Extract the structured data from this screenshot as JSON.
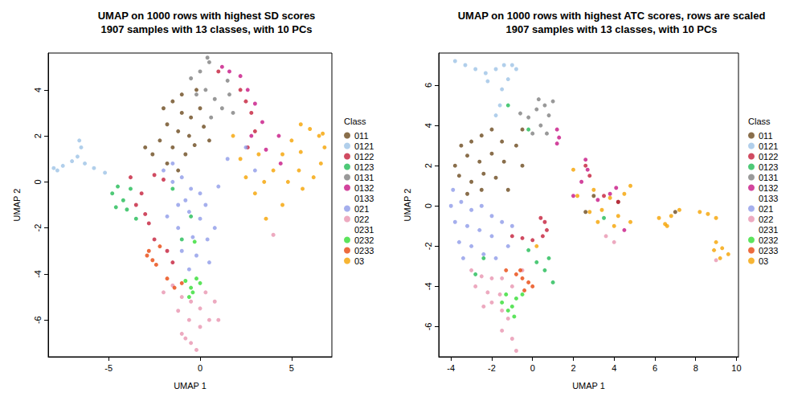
{
  "chart_data": [
    {
      "type": "scatter",
      "title": "UMAP on 1000 rows with highest SD scores\n1907 samples with 13 classes, with 10 PCs",
      "x_label": "UMAP 1",
      "y_label": "UMAP 2",
      "legend_title": "Class",
      "legend": "right",
      "xlim": [
        -8.3,
        7.2
      ],
      "ylim": [
        -7.6,
        5.6
      ],
      "xticks": [
        -5,
        0,
        5
      ],
      "yticks": [
        -6,
        -4,
        -2,
        0,
        2,
        4
      ],
      "series": [
        {
          "name": "011",
          "color": "#6B4A1E",
          "x": [
            -2,
            -1.5,
            -1,
            -0.5,
            0,
            -1.8,
            -1.2,
            -0.6,
            0.2,
            -2.2,
            -1.5,
            -0.8,
            -0.3,
            -1,
            -0.2,
            -2.6,
            -1.8,
            0.5,
            -3,
            -1.2
          ],
          "y": [
            3.2,
            3.5,
            3,
            2.8,
            3.2,
            2.5,
            2.2,
            2,
            2.4,
            1.8,
            1.5,
            1.2,
            1.6,
            3.8,
            4,
            1.2,
            0.8,
            1.8,
            1.5,
            0.5
          ]
        },
        {
          "name": "0121",
          "color": "#9DC3E6",
          "x": [
            -8,
            -7.5,
            -7,
            -6.7,
            -6.5,
            -6.6,
            -6.3,
            -5.8,
            -5.2,
            -7.8
          ],
          "y": [
            0.6,
            0.7,
            0.9,
            1.1,
            1.5,
            1.8,
            0.8,
            0.6,
            0.4,
            0.5
          ]
        },
        {
          "name": "0122",
          "color": "#C41E3A",
          "x": [
            -3.5,
            -3,
            -2.8,
            -3.2,
            -2.5,
            -2,
            2.2,
            2.5,
            2.8,
            3,
            2.6,
            -2.5,
            -1.8,
            -1.5,
            1,
            -3.8
          ],
          "y": [
            -1,
            -1.4,
            -1.8,
            -0.5,
            0.3,
            0.1,
            4,
            3.5,
            3,
            2.2,
            1.5,
            -2.5,
            -3,
            -3.5,
            4.8,
            0.2
          ]
        },
        {
          "name": "0123",
          "color": "#22BB55",
          "x": [
            -4.8,
            -4.5,
            -4.2,
            -4,
            -3.5,
            -4.6,
            -3.8,
            -1.5,
            -1,
            -0.5
          ],
          "y": [
            -0.5,
            -0.2,
            -0.8,
            -1.2,
            -1.6,
            -1.1,
            -0.3,
            -0.3,
            -2.5,
            -1.5
          ]
        },
        {
          "name": "0131",
          "color": "#808080",
          "x": [
            -0.5,
            0,
            0.5,
            0.3,
            0.8,
            1.2,
            0.6,
            1.6,
            1.8,
            1.5,
            -0.2,
            0.4
          ],
          "y": [
            4.5,
            4.8,
            5.2,
            4,
            3.6,
            3.2,
            2.8,
            3.8,
            3,
            4.4,
            3.8,
            5.4
          ]
        },
        {
          "name": "0132",
          "color": "#C71585",
          "x": [
            2.2,
            2.6,
            3,
            3.4,
            1.6,
            2.8,
            3.6,
            4.3,
            4.4,
            1.2
          ],
          "y": [
            4.6,
            4,
            3.4,
            2.6,
            4.8,
            2,
            1.4,
            2,
            0.8,
            5
          ]
        },
        {
          "name": "0133",
          "color": "#FFFFFF",
          "x": [],
          "y": []
        },
        {
          "name": "021",
          "color": "#8F9BE8",
          "x": [
            -1.5,
            -1,
            -0.5,
            0,
            -1.2,
            -0.6,
            0,
            -1.2,
            -0.4,
            0.4,
            -1,
            -0.2,
            0.5,
            -1.5,
            -0.8,
            0.3,
            -1.8,
            0.8,
            -0.6,
            -2,
            1,
            1.5,
            2.5,
            3
          ],
          "y": [
            0,
            0.2,
            -0.3,
            -0.5,
            -1,
            -1.3,
            -1.6,
            -2,
            -2.4,
            -2.5,
            -3,
            -3.2,
            -3.5,
            0.8,
            -0.8,
            -1,
            -1.5,
            -2,
            -3.8,
            0.5,
            -0.2,
            1,
            1.5,
            0.5
          ]
        },
        {
          "name": "022",
          "color": "#E895B0",
          "x": [
            -1.5,
            -1,
            -0.5,
            0,
            -1.2,
            -0.6,
            0,
            0.5,
            -1,
            -0.5,
            -0.2,
            0.8,
            -2,
            0.3,
            1,
            -0.8,
            4
          ],
          "y": [
            -4.5,
            -5,
            -5.2,
            -5.5,
            -5.6,
            -6,
            -6.3,
            -6,
            -6.6,
            -7,
            -7.3,
            -5.2,
            -4.8,
            -4.8,
            -6,
            -6.8,
            -2.3
          ]
        },
        {
          "name": "0231",
          "color": "#FFFFFF",
          "x": [],
          "y": []
        },
        {
          "name": "0232",
          "color": "#33DD33",
          "x": [
            -0.8,
            -0.5,
            -0.2,
            -0.6,
            0,
            -0.3,
            -0.4
          ],
          "y": [
            -4.3,
            -4.6,
            -4.2,
            -5,
            -4.4,
            -2.6,
            -4.8
          ]
        },
        {
          "name": "0233",
          "color": "#E8470E",
          "x": [
            -2.8,
            -2.6,
            -2.4,
            -2.2,
            -1.8,
            -1.4,
            -1,
            -2.9
          ],
          "y": [
            -3,
            -3.4,
            -3.6,
            -2.8,
            -4.2,
            -4.6,
            -4.4,
            -3.2
          ]
        },
        {
          "name": "03",
          "color": "#F5A300",
          "x": [
            5.5,
            6,
            6.5,
            6.8,
            6.6,
            6.2,
            5.6,
            5.4,
            5.5,
            5,
            4.5,
            4,
            3.5,
            3,
            2.5,
            4.5,
            3.6,
            2.2,
            1.8,
            3.2,
            4.8,
            6.7
          ],
          "y": [
            2.5,
            2.3,
            2,
            1.5,
            0.8,
            0.2,
            -0.3,
            0.5,
            1.3,
            1.8,
            1.2,
            0.5,
            0,
            -0.5,
            0.2,
            -1,
            -1.6,
            1,
            2,
            1.2,
            0,
            2.1
          ]
        }
      ]
    },
    {
      "type": "scatter",
      "title": "UMAP on 1000 rows with highest ATC scores, rows are scaled\n1907 samples with 13 classes, with 10 PCs",
      "x_label": "UMAP 1",
      "y_label": "UMAP 2",
      "legend_title": "Class",
      "legend": "right",
      "xlim": [
        -4.6,
        10.1
      ],
      "ylim": [
        -7.5,
        7.6
      ],
      "xticks": [
        -4,
        -2,
        0,
        2,
        4,
        6,
        8,
        10
      ],
      "yticks": [
        -6,
        -4,
        -2,
        0,
        2,
        4,
        6
      ],
      "series": [
        {
          "name": "011",
          "color": "#6B4A1E",
          "x": [
            -3.5,
            -3,
            -2.5,
            -2,
            -1.5,
            -3.2,
            -2.6,
            -2,
            -1.4,
            -3.6,
            -3,
            -2.4,
            -1.8,
            -0.8,
            -0.5,
            -3.2,
            -2.5,
            -1.2,
            -0.5,
            -3.8,
            3,
            4.2,
            2.6,
            7
          ],
          "y": [
            3,
            3.2,
            3.5,
            3.8,
            3.2,
            2.5,
            2.2,
            2.6,
            2.2,
            1.5,
            1.2,
            1.6,
            1.4,
            3,
            2,
            0.6,
            0.8,
            0.8,
            3.8,
            2,
            0.5,
            0.2,
            -0.3,
            -0.3
          ]
        },
        {
          "name": "0121",
          "color": "#9DC3E6",
          "x": [
            -3.8,
            -3.3,
            -2.8,
            -2.3,
            -1.8,
            -1.4,
            -1,
            -1.2,
            -1.5,
            -1.6,
            -1.8,
            -2.2,
            -0.8
          ],
          "y": [
            7.2,
            7,
            6.8,
            6.6,
            6.8,
            7,
            7,
            6.3,
            5.8,
            5,
            4.5,
            6.2,
            6.8
          ]
        },
        {
          "name": "0122",
          "color": "#C41E3A",
          "x": [
            0.6,
            0.7,
            0.5,
            0,
            -0.5,
            -1,
            0.4,
            2.6,
            2.8,
            3.5,
            4.2
          ],
          "y": [
            -0.8,
            -1.2,
            -1.5,
            -1.7,
            -1.6,
            -1.5,
            -0.6,
            2,
            1.5,
            0.5,
            0.2
          ]
        },
        {
          "name": "0123",
          "color": "#22BB55",
          "x": [
            -0.2,
            0.2,
            0.6,
            1,
            0.8,
            -2.4,
            -2.8,
            -0.2,
            3.5,
            -1.2
          ],
          "y": [
            -2.2,
            -2.8,
            -3.2,
            -3.8,
            -2.6,
            -2.6,
            -3.4,
            3.8,
            -0.6,
            5
          ]
        },
        {
          "name": "0131",
          "color": "#808080",
          "x": [
            -0.2,
            0.2,
            0.6,
            0.8,
            0.4,
            0,
            0.7,
            -0.6,
            1,
            0.3
          ],
          "y": [
            4.4,
            4.8,
            5,
            4.5,
            4,
            3.6,
            3.6,
            4.6,
            5.2,
            5.3
          ]
        },
        {
          "name": "0132",
          "color": "#C71585",
          "x": [
            1.2,
            1.3,
            1.2,
            2.6,
            2.7,
            2.4,
            3.2,
            3.8,
            4.1,
            4.5,
            2
          ],
          "y": [
            3.8,
            3.4,
            3.1,
            2.3,
            1.8,
            1.2,
            0.3,
            0.6,
            0.9,
            -1.2,
            0.5
          ]
        },
        {
          "name": "0133",
          "color": "#FFFFFF",
          "x": [],
          "y": []
        },
        {
          "name": "021",
          "color": "#8F9BE8",
          "x": [
            -4,
            -3.5,
            -3,
            -2.5,
            -3.8,
            -3.2,
            -2.6,
            -2,
            -3.6,
            -3,
            -2.4,
            -1.8,
            -2,
            -1.5,
            -1,
            -3.9,
            -1.2,
            -3.4
          ],
          "y": [
            0,
            0.2,
            -0.2,
            0,
            -0.8,
            -1,
            -1.2,
            -1.5,
            -1.8,
            -2,
            -2.4,
            -2.6,
            -0.5,
            -0.8,
            -1,
            0.8,
            -2,
            -2.6
          ]
        },
        {
          "name": "022",
          "color": "#E895B0",
          "x": [
            -3,
            -2.5,
            -2,
            -1.5,
            -2.8,
            -2.2,
            -1.6,
            -1,
            -2,
            -1.5,
            -2.4,
            -1.2,
            -1.5,
            -1,
            -0.8,
            3.6,
            4,
            9,
            -0.5
          ],
          "y": [
            -3.2,
            -3.5,
            -3.6,
            -3.6,
            -4,
            -4.3,
            -4.4,
            -4,
            -4.8,
            -5.2,
            -5,
            -5.6,
            -6.2,
            -6.6,
            -7.2,
            -1.5,
            -1.8,
            -2.7,
            -3.2
          ]
        },
        {
          "name": "0231",
          "color": "#FFFFFF",
          "x": [],
          "y": []
        },
        {
          "name": "0232",
          "color": "#33DD33",
          "x": [
            -1.5,
            -1.2,
            -1,
            -0.8,
            -0.5,
            -1.3,
            -0.9
          ],
          "y": [
            -4.8,
            -5.2,
            -5,
            -4.6,
            -4.4,
            -4.4,
            -5.5
          ]
        },
        {
          "name": "0233",
          "color": "#E8470E",
          "x": [
            -0.8,
            -0.5,
            -0.2,
            -0.6,
            0,
            -1.3,
            -0.4
          ],
          "y": [
            -3.4,
            -3.6,
            -3.8,
            -3.2,
            -4,
            -3.2,
            -4.2
          ]
        },
        {
          "name": "03",
          "color": "#F5A300",
          "x": [
            2.2,
            3,
            3.8,
            4.5,
            4.8,
            3.4,
            4.2,
            4.8,
            4,
            3.2,
            2.8,
            6.2,
            6.5,
            6.8,
            7.2,
            6.6,
            8.2,
            8.6,
            9,
            9,
            9.3,
            9.6,
            9.2,
            8.9,
            0.2,
            2
          ],
          "y": [
            0.5,
            0.8,
            0.4,
            0.6,
            1,
            -0.2,
            -0.5,
            -0.8,
            -1,
            -0.8,
            -0.3,
            -0.6,
            -0.9,
            -0.5,
            -0.2,
            -1,
            -0.3,
            -0.4,
            -0.6,
            -1.8,
            -2.1,
            -2.4,
            -2.6,
            -2.2,
            -2,
            1.8
          ]
        }
      ]
    }
  ]
}
